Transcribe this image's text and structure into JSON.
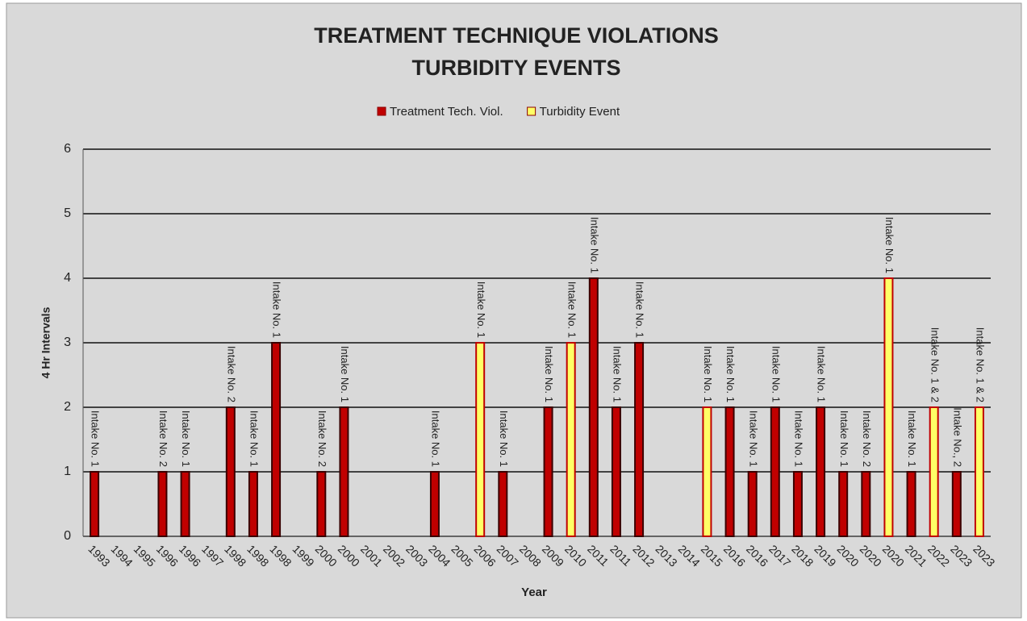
{
  "chart_data": {
    "type": "bar",
    "title": "TREATMENT TECHNIQUE VIOLATIONS",
    "subtitle": "TURBIDITY EVENTS",
    "x_label": "Year",
    "y_label": "4 Hr Intervals",
    "categories": [
      "1993",
      "1994",
      "1995",
      "1996",
      "1996",
      "1997",
      "1998",
      "1998",
      "1998",
      "1999",
      "2000",
      "2000",
      "2001",
      "2002",
      "2003",
      "2004",
      "2005",
      "2006",
      "2007",
      "2008",
      "2009",
      "2010",
      "2011",
      "2011",
      "2012",
      "2013",
      "2014",
      "2015",
      "2016",
      "2016",
      "2017",
      "2018",
      "2019",
      "2020",
      "2020",
      "2020",
      "2021",
      "2022",
      "2023",
      "2023"
    ],
    "series": [
      {
        "name": "Treatment Tech. Viol.",
        "color": "#c00000",
        "values": [
          1,
          null,
          null,
          1,
          1,
          null,
          2,
          1,
          3,
          null,
          1,
          2,
          null,
          null,
          null,
          1,
          null,
          null,
          1,
          null,
          2,
          null,
          4,
          2,
          3,
          null,
          null,
          null,
          2,
          1,
          2,
          1,
          2,
          1,
          1,
          null,
          1,
          null,
          1,
          null
        ],
        "labels": [
          "Intake No. 1",
          null,
          null,
          "Intake No. 2",
          "Intake No. 1",
          null,
          "Intake No. 2",
          "Intake No. 1",
          "Intake No. 1",
          null,
          "Intake No. 2",
          "Intake No. 1",
          null,
          null,
          null,
          "Intake No. 1",
          null,
          null,
          "Intake No. 1",
          null,
          "Intake No. 1",
          null,
          "Intake No. 1",
          "Intake No. 1",
          "Intake No. 1",
          null,
          null,
          null,
          "Intake No. 1",
          "Intake No. 1",
          "Intake No. 1",
          "Intake No. 1",
          "Intake No. 1",
          "Intake No. 1",
          "Intake No. 2",
          null,
          "Intake No. 1",
          null,
          "Intake No., 2",
          null
        ]
      },
      {
        "name": "Turbidity Event",
        "color": "#ffff66",
        "values": [
          null,
          null,
          null,
          null,
          null,
          null,
          null,
          null,
          null,
          null,
          null,
          null,
          null,
          null,
          null,
          null,
          null,
          3,
          null,
          null,
          null,
          3,
          null,
          null,
          null,
          null,
          null,
          2,
          null,
          null,
          null,
          null,
          null,
          null,
          null,
          4,
          null,
          2,
          null,
          2
        ],
        "labels": [
          null,
          null,
          null,
          null,
          null,
          null,
          null,
          null,
          null,
          null,
          null,
          null,
          null,
          null,
          null,
          null,
          null,
          "Intake No. 1",
          null,
          null,
          null,
          "Intake No. 1",
          null,
          null,
          null,
          null,
          null,
          "Intake No. 1",
          null,
          null,
          null,
          null,
          null,
          null,
          null,
          "Intake No. 1",
          null,
          "Intake No. 1 & 2",
          null,
          "Intake No. 1 & 2"
        ]
      }
    ],
    "ylim": [
      0,
      6
    ],
    "yticks": [
      0,
      1,
      2,
      3,
      4,
      5,
      6
    ],
    "grid": true
  }
}
